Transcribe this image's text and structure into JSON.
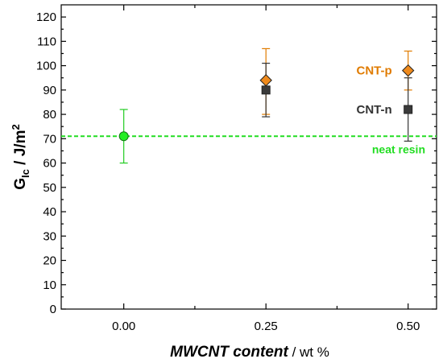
{
  "chart_data": {
    "type": "scatter",
    "xlabel": {
      "main": "MWCNT content",
      "unit": " / wt %"
    },
    "ylabel": {
      "main": "G",
      "sub": "Ic",
      "unit": " / J/m",
      "sup": "2"
    },
    "xlim": [
      -0.11,
      0.55
    ],
    "ylim": [
      0,
      125
    ],
    "x_ticks": [
      0,
      0.25,
      0.5
    ],
    "x_tick_labels": [
      "0.00",
      "0.25",
      "0.50"
    ],
    "y_ticks": [
      0,
      10,
      20,
      30,
      40,
      50,
      60,
      70,
      80,
      90,
      100,
      110,
      120
    ],
    "y_tick_labels": [
      "0",
      "10",
      "20",
      "30",
      "40",
      "50",
      "60",
      "70",
      "80",
      "90",
      "100",
      "110",
      "120"
    ],
    "grid": false,
    "series": [
      {
        "name": "CNT-p",
        "marker": "diamond",
        "color": "#e07b00",
        "fill": "#ef8a1c",
        "points": [
          {
            "x": 0.25,
            "y": 94,
            "err_low": 80,
            "err_high": 107
          },
          {
            "x": 0.5,
            "y": 98,
            "err_low": 90,
            "err_high": 106
          }
        ]
      },
      {
        "name": "CNT-n",
        "marker": "square",
        "color": "#333333",
        "fill": "#3a3a3a",
        "points": [
          {
            "x": 0.25,
            "y": 90,
            "err_low": 79,
            "err_high": 101
          },
          {
            "x": 0.5,
            "y": 82,
            "err_low": 69,
            "err_high": 95
          }
        ]
      },
      {
        "name": "",
        "marker": "circle",
        "color": "#22cc22",
        "fill": "#22ee22",
        "points": [
          {
            "x": 0,
            "y": 71,
            "err_low": 60,
            "err_high": 82
          }
        ]
      }
    ],
    "reference_line": {
      "y": 71,
      "label": "neat resin",
      "style": "dashed",
      "color": "#22dd22"
    },
    "annotations": [
      {
        "text": "CNT-p",
        "color": "#e07b00"
      },
      {
        "text": "CNT-n",
        "color": "#333333"
      }
    ]
  }
}
